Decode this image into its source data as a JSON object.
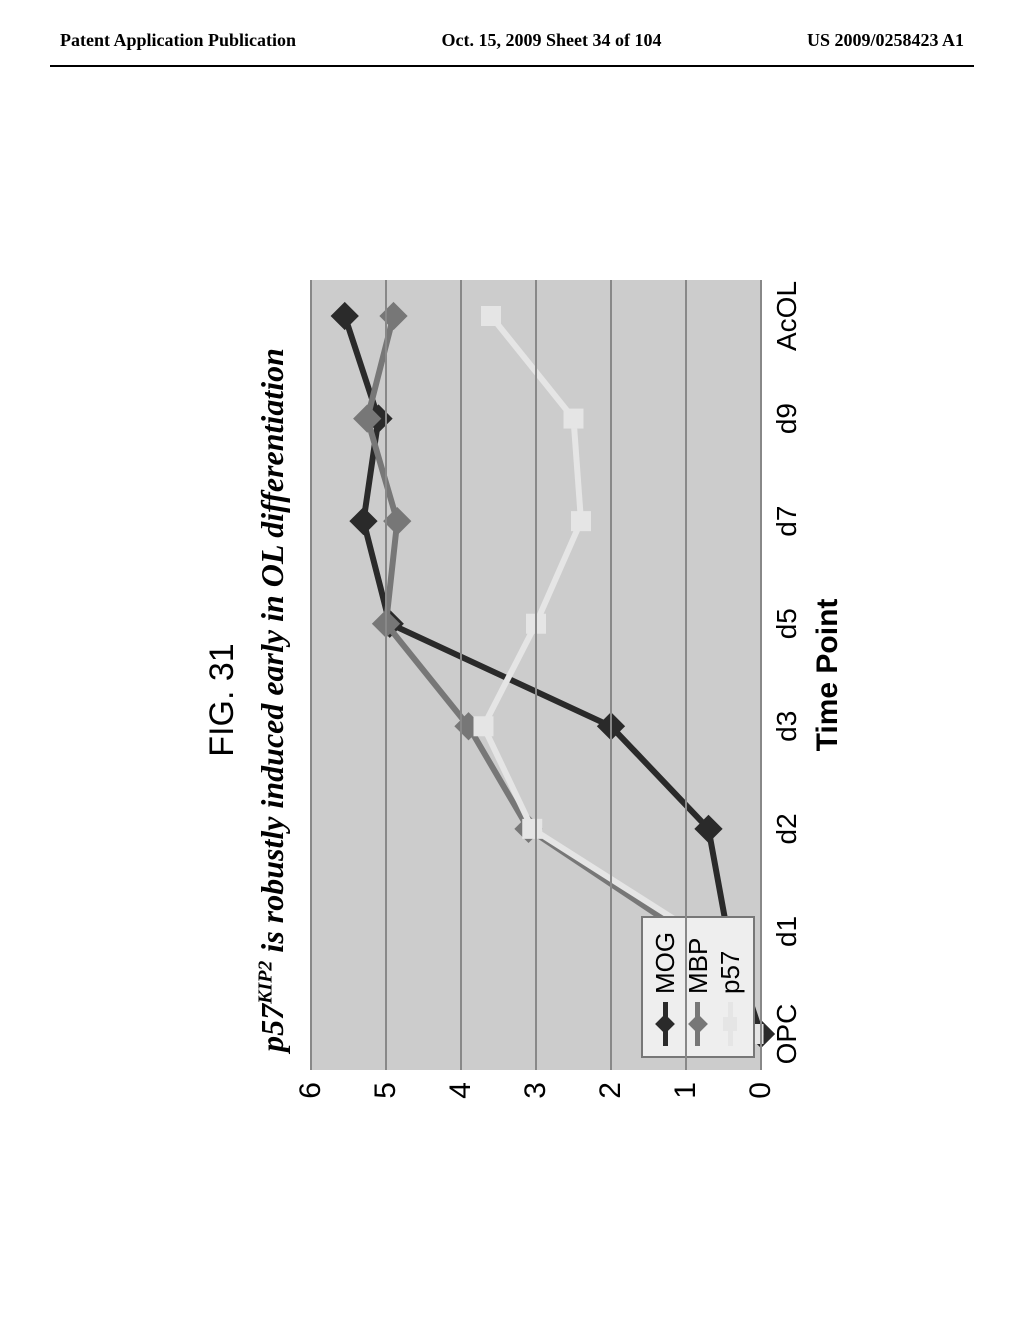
{
  "header": {
    "left": "Patent Application Publication",
    "center": "Oct. 15, 2009  Sheet 34 of 104",
    "right": "US 2009/0258423 A1"
  },
  "figure": {
    "label": "FIG. 31",
    "title_prefix": "p57",
    "title_sup": "KIP2",
    "title_rest": " is robustly induced early in OL differentiation",
    "x_axis_label": "Time Point"
  },
  "chart": {
    "type": "line",
    "background_color": "#cccccc",
    "grid_color": "#888888",
    "ylim": [
      0,
      6
    ],
    "ytick_step": 1,
    "yticks": [
      0,
      1,
      2,
      3,
      4,
      5,
      6
    ],
    "x_categories": [
      "OPC",
      "d1",
      "d2",
      "d3",
      "d5",
      "d7",
      "d9",
      "AcOL"
    ],
    "line_width": 6,
    "marker_size": 10,
    "series": [
      {
        "name": "MOG",
        "color": "#2a2a2a",
        "marker": "diamond",
        "values": [
          0.0,
          0.45,
          0.7,
          2.0,
          4.95,
          5.3,
          5.1,
          5.55
        ]
      },
      {
        "name": "MBP",
        "color": "#777777",
        "marker": "diamond",
        "values": [
          0.15,
          1.05,
          3.1,
          3.9,
          5.0,
          4.85,
          5.25,
          4.9
        ]
      },
      {
        "name": "p57",
        "color": "#e5e5e5",
        "marker": "square",
        "values": [
          0.1,
          0.9,
          3.05,
          3.7,
          3.0,
          2.4,
          2.5,
          3.6
        ]
      }
    ],
    "legend": {
      "position": "lower-left",
      "background": "#eeeeee",
      "border_color": "#777777",
      "items": [
        "MOG",
        "MBP",
        "p57"
      ]
    },
    "label_fontsize": 30,
    "tick_fontsize": 28
  }
}
